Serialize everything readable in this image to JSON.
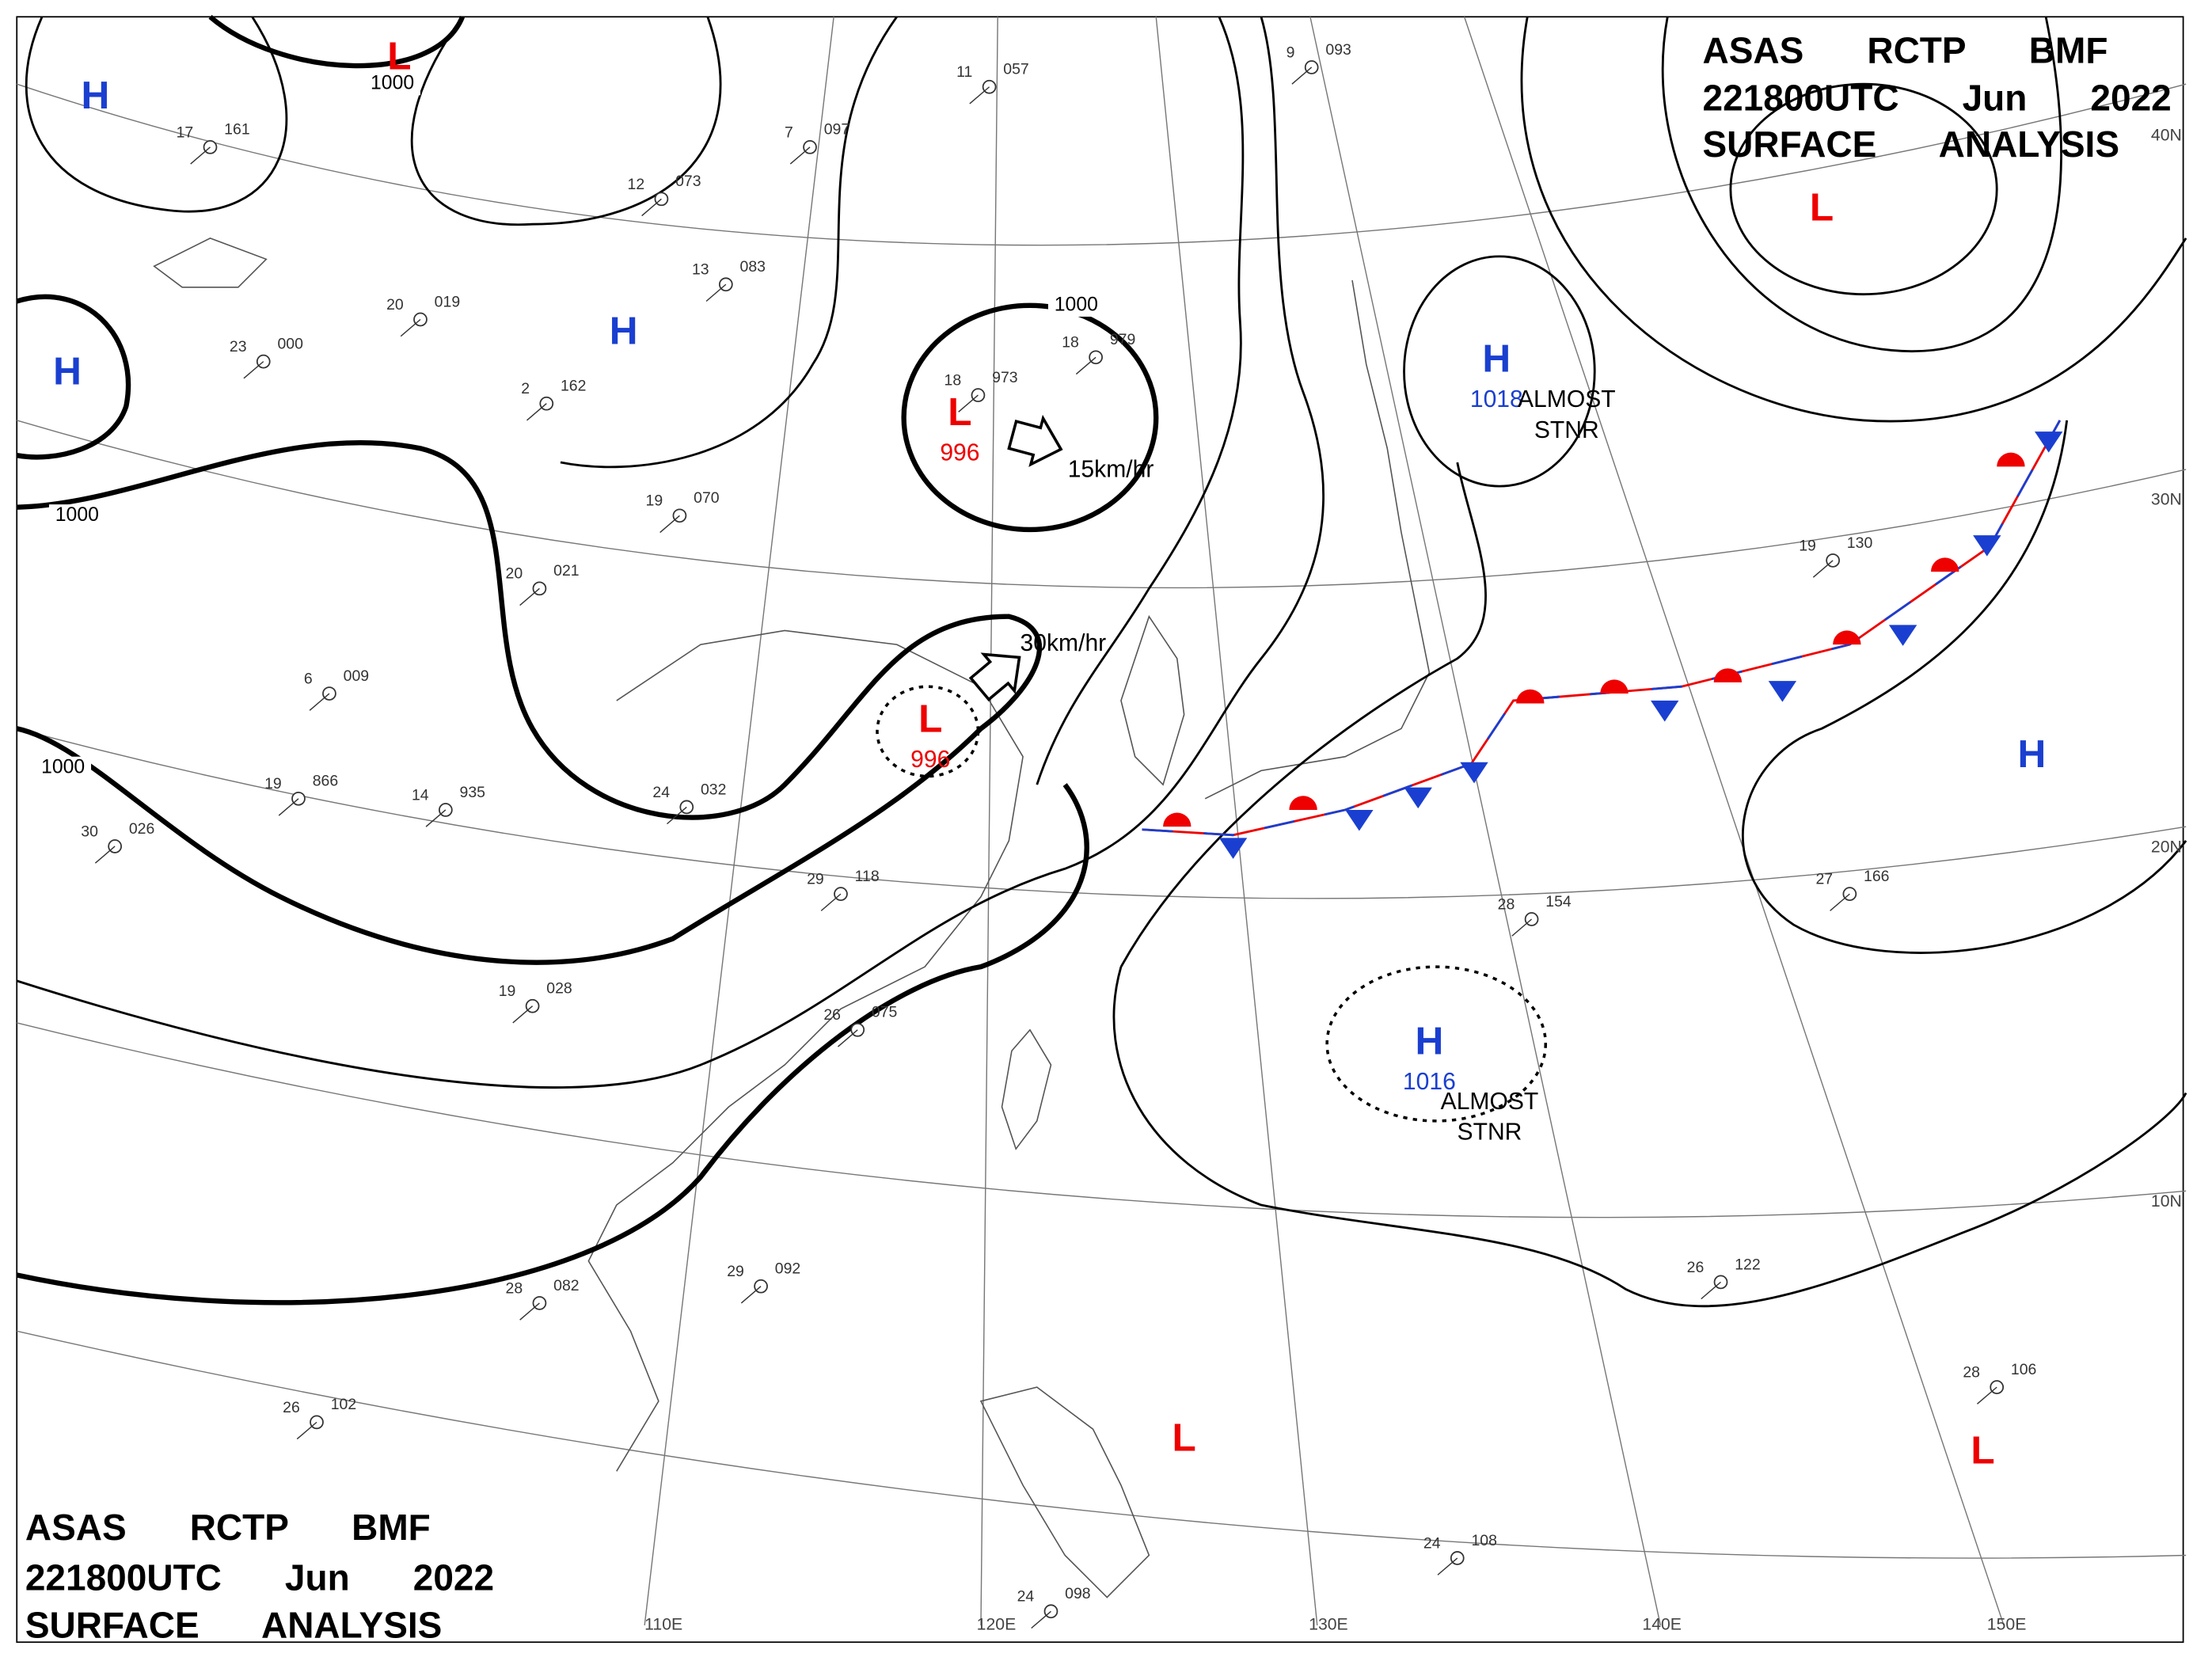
{
  "header": {
    "line1": "ASAS RCTP BMF",
    "line2": "221800UTC Jun 2022",
    "line3": "SURFACE ANALYSIS"
  },
  "latitudes": [
    "40N",
    "30N",
    "20N",
    "10N"
  ],
  "longitudes": [
    "110E",
    "120E",
    "130E",
    "140E",
    "150E"
  ],
  "isobar_labels": [
    1000,
    1000,
    1000,
    1000
  ],
  "motions": [
    "15km/hr",
    "30km/hr"
  ],
  "systems": [
    {
      "label": "L"
    },
    {
      "label": "H"
    },
    {
      "label": "H"
    },
    {
      "label": "H"
    },
    {
      "label": "L",
      "pressure": 996
    },
    {
      "label": "L",
      "pressure": 996
    },
    {
      "label": "H",
      "pressure": 1018,
      "note": [
        "ALMOST",
        "STNR"
      ]
    },
    {
      "label": "L"
    },
    {
      "label": "H"
    },
    {
      "label": "H",
      "pressure": 1016,
      "note": [
        "ALMOST",
        "STNR"
      ]
    },
    {
      "label": "L"
    },
    {
      "label": "L"
    }
  ],
  "stations": [
    {
      "temp": 17,
      "pressure": "161"
    },
    {
      "temp": 7,
      "pressure": "097"
    },
    {
      "temp": 12,
      "pressure": "073"
    },
    {
      "temp": 13,
      "pressure": "083"
    },
    {
      "temp": 20,
      "pressure": "019"
    },
    {
      "temp": 23,
      "pressure": "000"
    },
    {
      "temp": 2,
      "pressure": "162"
    },
    {
      "temp": 19,
      "pressure": "070"
    },
    {
      "temp": 20,
      "pressure": "021"
    },
    {
      "temp": 6,
      "pressure": "009"
    },
    {
      "temp": 19,
      "pressure": "866"
    },
    {
      "temp": 14,
      "pressure": "935"
    },
    {
      "temp": 24,
      "pressure": "032"
    },
    {
      "temp": 30,
      "pressure": "026"
    },
    {
      "temp": 29,
      "pressure": "118"
    },
    {
      "temp": 19,
      "pressure": "028"
    },
    {
      "temp": 26,
      "pressure": "075"
    },
    {
      "temp": 29,
      "pressure": "092"
    },
    {
      "temp": 28,
      "pressure": "082"
    },
    {
      "temp": 26,
      "pressure": "102"
    },
    {
      "temp": 18,
      "pressure": "973"
    },
    {
      "temp": 18,
      "pressure": "979"
    },
    {
      "temp": 9,
      "pressure": "093"
    },
    {
      "temp": 11,
      "pressure": "057"
    },
    {
      "temp": 19,
      "pressure": "130"
    },
    {
      "temp": 28,
      "pressure": "154"
    },
    {
      "temp": 27,
      "pressure": "166"
    },
    {
      "temp": 28,
      "pressure": "106"
    },
    {
      "temp": 26,
      "pressure": "122"
    },
    {
      "temp": 24,
      "pressure": "108"
    },
    {
      "temp": 24,
      "pressure": "098"
    }
  ]
}
